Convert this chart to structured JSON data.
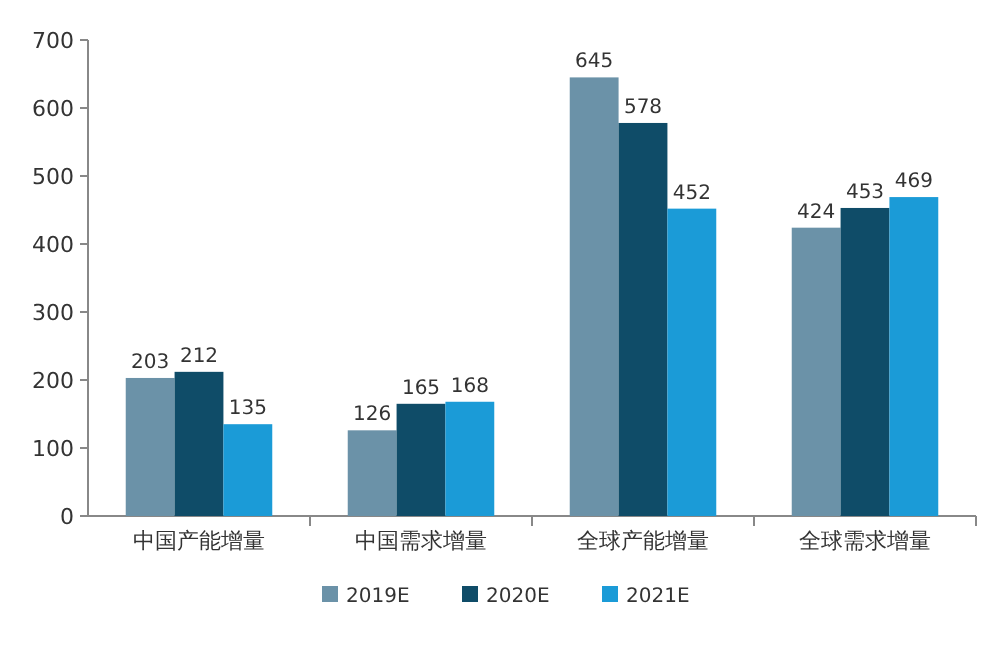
{
  "chart_data": {
    "type": "bar",
    "categories": [
      "中国产能增量",
      "中国需求增量",
      "全球产能增量",
      "全球需求增量"
    ],
    "series": [
      {
        "name": "2019E",
        "color": "#6b92a8",
        "values": [
          203,
          126,
          645,
          424
        ]
      },
      {
        "name": "2020E",
        "color": "#0f4c68",
        "values": [
          212,
          165,
          578,
          453
        ]
      },
      {
        "name": "2021E",
        "color": "#1b9bd7",
        "values": [
          135,
          168,
          452,
          469
        ]
      }
    ],
    "ylim": [
      0,
      700
    ],
    "yticks": [
      0,
      100,
      200,
      300,
      400,
      500,
      600,
      700
    ],
    "grid": false,
    "legend": "bottom",
    "data_labels": true
  }
}
